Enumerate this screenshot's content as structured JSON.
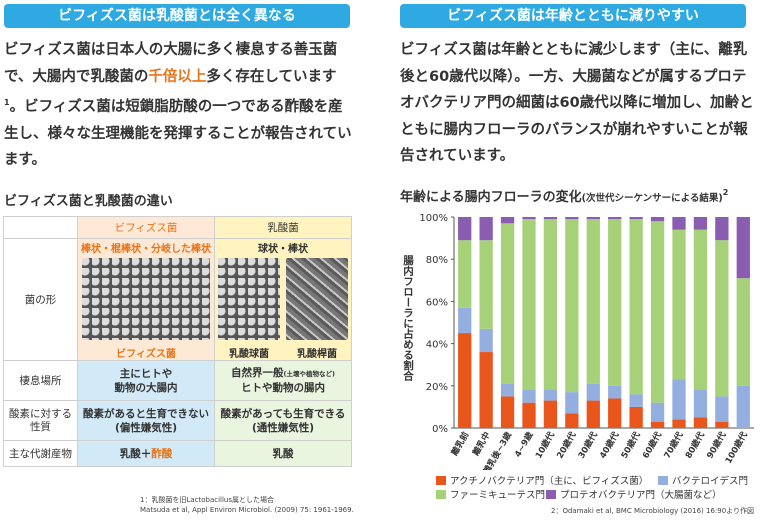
{
  "left": {
    "banner": "ビフィズス菌は乳酸菌とは全く異なる",
    "paragraph": {
      "p1": "ビフィズス菌は日本人の大腸に多く棲息する善玉菌で、大腸内で乳酸菌の",
      "highlight": "千倍以上",
      "p2": "多く存在しています",
      "sup": "1",
      "p3": "。ビフィズス菌は短鎖脂肪酸の一つである酢酸を産生し、様々な生理機能を発揮することが報告されています。"
    },
    "table_title": "ビフィズス菌と乳酸菌の違い",
    "table": {
      "head_bif": "ビフィズス菌",
      "head_lac": "乳酸菌",
      "shape_label": "菌の形",
      "bif_shape": "棒状・棍棒状・分岐した棒状",
      "bif_caption": "ビフィズス菌",
      "lac_shape": "球状・棒状",
      "lac_caption1": "乳酸球菌",
      "lac_caption2": "乳酸桿菌",
      "habitat_label": "棲息場所",
      "bif_habitat": "主にヒトや\n動物の大腸内",
      "lac_habitat_main": "自然界一般",
      "lac_habitat_small": "(土壌や植物など)",
      "lac_habitat_2": "ヒトや動物の腸内",
      "oxygen_label": "酸素に対する\n性質",
      "bif_oxygen": "酸素があると生育できない\n(偏性嫌気性)",
      "lac_oxygen": "酸素があっても生育できる\n(通性嫌気性)",
      "metab_label": "主な代謝産物",
      "bif_metab_a": "乳酸＋",
      "bif_metab_b": "酢酸",
      "lac_metab": "乳酸"
    },
    "footnote": {
      "line1": "1：乳酸菌を旧Lactobacillus属とした場合",
      "line2": "Matsuda et al, Appl Environ Microbiol. (2009) 75: 1961-1969."
    }
  },
  "right": {
    "banner": "ビフィズス菌は年齢とともに減りやすい",
    "paragraph": "ビフィズス菌は年齢とともに減少します（主に、離乳後と60歳代以降）。一方、大腸菌などが属するプロテオバクテリア門の細菌は60歳代以降に増加し、加齢とともに腸内フローラのバランスが崩れやすいことが報告されています。",
    "chart_title": "年齢による腸内フローラの変化",
    "chart_title_small": "(次世代シーケンサーによる結果)",
    "chart_title_sup": "2",
    "footnote": "2：Odamaki et al, BMC Microbiology (2016) 16:90より作図"
  },
  "colors": {
    "banner": "#2fa9e1",
    "highlight": "#e8741a",
    "actinobacteria": "#e8561c",
    "bacteroidetes": "#94aee0",
    "firmicutes": "#a6d178",
    "proteobacteria": "#8a5db0"
  },
  "chart_data": {
    "type": "bar",
    "stacked": true,
    "title": "年齢による腸内フローラの変化",
    "ylabel": "腸内フローラに占める割合",
    "ylim": [
      0,
      100
    ],
    "yticks": [
      "0%",
      "20%",
      "40%",
      "60%",
      "80%",
      "100%"
    ],
    "categories": [
      "離乳前",
      "離乳中",
      "離乳後~3歳",
      "4~9歳",
      "10歳代",
      "20歳代",
      "30歳代",
      "40歳代",
      "50歳代",
      "60歳代",
      "70歳代",
      "80歳代",
      "90歳代",
      "100歳代"
    ],
    "series": [
      {
        "name": "アクチノバクテリア門（主に、ビフィズス菌）",
        "color": "#e8561c",
        "values": [
          45,
          36,
          15,
          12,
          13,
          7,
          13,
          14,
          10,
          3,
          4,
          5,
          3,
          0
        ]
      },
      {
        "name": "バクテロイデス門",
        "color": "#94aee0",
        "values": [
          12,
          11,
          6,
          6,
          5,
          10,
          8,
          6,
          6,
          9,
          19,
          13,
          12,
          20
        ]
      },
      {
        "name": "ファーミキューテス門",
        "color": "#a6d178",
        "values": [
          32,
          42,
          76,
          81,
          81,
          82,
          78,
          79,
          83,
          86,
          71,
          76,
          74,
          51
        ]
      },
      {
        "name": "プロテオバクテリア門（大腸菌など）",
        "color": "#8a5db0",
        "values": [
          11,
          11,
          3,
          1,
          1,
          1,
          1,
          1,
          1,
          2,
          6,
          6,
          11,
          29
        ]
      }
    ],
    "legend_position": "bottom"
  }
}
